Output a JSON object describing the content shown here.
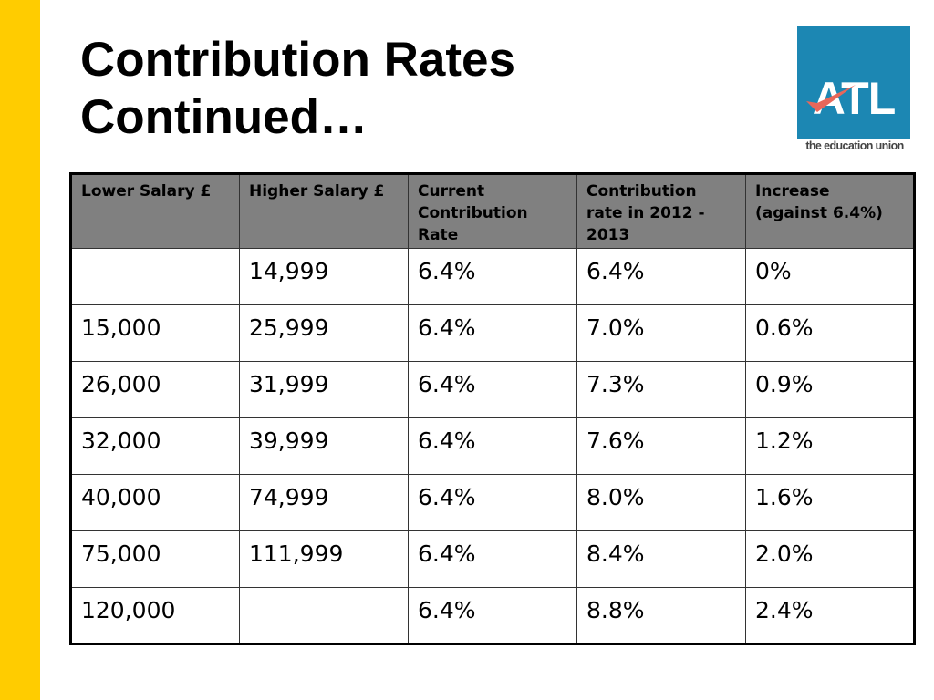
{
  "slide": {
    "title_line1": "Contribution Rates",
    "title_line2": "Continued…",
    "accent_color": "#FFCC00"
  },
  "logo": {
    "text": "ATL",
    "tagline": "the education union",
    "color": "#1C87B3"
  },
  "table": {
    "headers": [
      "Lower Salary £",
      "Higher Salary £",
      "Current Contribution Rate",
      "Contribution rate in 2012 - 2013",
      "Increase (against 6.4%)"
    ],
    "rows": [
      [
        "",
        "14,999",
        "6.4%",
        "6.4%",
        "0%"
      ],
      [
        "15,000",
        "25,999",
        "6.4%",
        "7.0%",
        "0.6%"
      ],
      [
        "26,000",
        "31,999",
        "6.4%",
        "7.3%",
        "0.9%"
      ],
      [
        "32,000",
        "39,999",
        "6.4%",
        "7.6%",
        "1.2%"
      ],
      [
        "40,000",
        "74,999",
        "6.4%",
        "8.0%",
        "1.6%"
      ],
      [
        "75,000",
        "111,999",
        "6.4%",
        "8.4%",
        "2.0%"
      ],
      [
        "120,000",
        "",
        "6.4%",
        "8.8%",
        "2.4%"
      ]
    ]
  }
}
